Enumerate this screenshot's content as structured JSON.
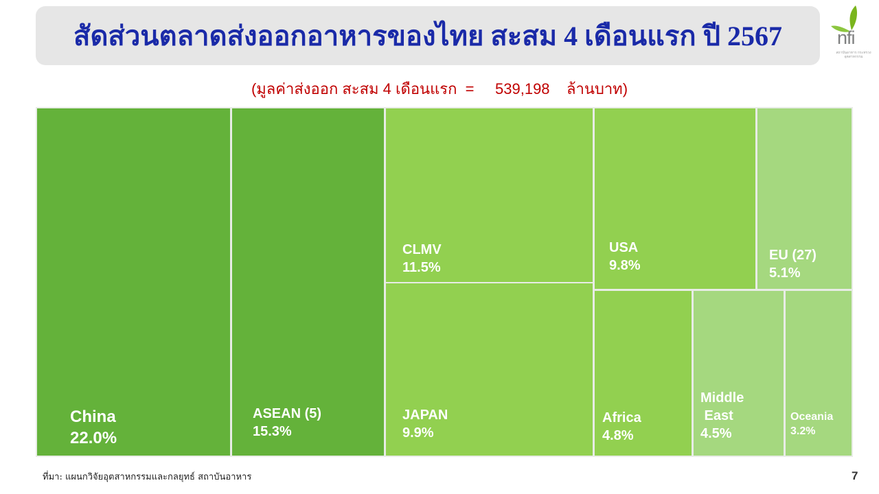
{
  "title": "สัดส่วนตลาดส่งออกอาหารของไทย สะสม 4 เดือนแรก  ปี 2567",
  "subtitle": "(มูลค่าส่งออก สะสม 4 เดือนแรก  =     539,198    ล้านบาท)",
  "source": "ที่มา: แผนกวิจัยอุตสาหกรรมและกลยุทธ์   สถาบันอาหาร",
  "page_number": "7",
  "logo": {
    "text": "nfi",
    "tagline": "สถาบันอาหาร กระทรวงอุตสาหกรรม",
    "icon": "leaf-sprout-icon"
  },
  "chart_data": {
    "type": "treemap",
    "title": "",
    "total_label": "539,198 ล้านบาท",
    "series": [
      {
        "name": "China",
        "label": "China\n22.0%",
        "value": 22.0,
        "color": "#64b23a"
      },
      {
        "name": "ASEAN (5)",
        "label": "ASEAN (5)\n15.3%",
        "value": 15.3,
        "color": "#64b23a"
      },
      {
        "name": "CLMV",
        "label": "CLMV\n11.5%",
        "value": 11.5,
        "color": "#92d050"
      },
      {
        "name": "JAPAN",
        "label": "JAPAN\n9.9%",
        "value": 9.9,
        "color": "#92d050"
      },
      {
        "name": "USA",
        "label": "USA\n9.8%",
        "value": 9.8,
        "color": "#92d050"
      },
      {
        "name": "EU (27)",
        "label": "EU (27)\n5.1%",
        "value": 5.1,
        "color": "#a5d87f"
      },
      {
        "name": "Africa",
        "label": "Africa\n4.8%",
        "value": 4.8,
        "color": "#92d050"
      },
      {
        "name": "Middle East",
        "label": "Middle\n East\n4.5%",
        "value": 4.5,
        "color": "#a5d87f"
      },
      {
        "name": "Oceania",
        "label": "Oceania\n3.2%",
        "value": 3.2,
        "color": "#a5d87f"
      }
    ]
  }
}
